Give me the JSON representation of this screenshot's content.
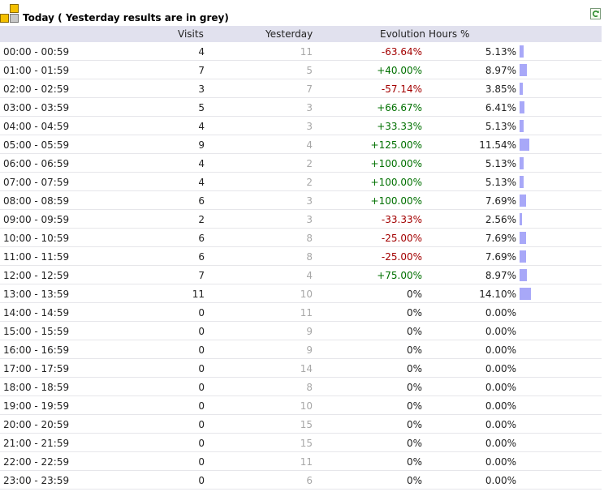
{
  "title": "Today ( Yesterday results are in grey)",
  "columns": {
    "visits": "Visits",
    "yesterday": "Yesterday",
    "evolution": "Evolution",
    "hours_pct": "Hours %"
  },
  "colors": {
    "header_bg": "#e1e1ee",
    "bar": "#a8a8f8",
    "negative": "#a30000",
    "positive": "#007000",
    "grey": "#a8a8a8"
  },
  "rows": [
    {
      "hour": "00:00 - 00:59",
      "visits": "4",
      "yesterday": "11",
      "evolution": "-63.64%",
      "pct": "5.13%",
      "share": 5.13
    },
    {
      "hour": "01:00 - 01:59",
      "visits": "7",
      "yesterday": "5",
      "evolution": "+40.00%",
      "pct": "8.97%",
      "share": 8.97
    },
    {
      "hour": "02:00 - 02:59",
      "visits": "3",
      "yesterday": "7",
      "evolution": "-57.14%",
      "pct": "3.85%",
      "share": 3.85
    },
    {
      "hour": "03:00 - 03:59",
      "visits": "5",
      "yesterday": "3",
      "evolution": "+66.67%",
      "pct": "6.41%",
      "share": 6.41
    },
    {
      "hour": "04:00 - 04:59",
      "visits": "4",
      "yesterday": "3",
      "evolution": "+33.33%",
      "pct": "5.13%",
      "share": 5.13
    },
    {
      "hour": "05:00 - 05:59",
      "visits": "9",
      "yesterday": "4",
      "evolution": "+125.00%",
      "pct": "11.54%",
      "share": 11.54
    },
    {
      "hour": "06:00 - 06:59",
      "visits": "4",
      "yesterday": "2",
      "evolution": "+100.00%",
      "pct": "5.13%",
      "share": 5.13
    },
    {
      "hour": "07:00 - 07:59",
      "visits": "4",
      "yesterday": "2",
      "evolution": "+100.00%",
      "pct": "5.13%",
      "share": 5.13
    },
    {
      "hour": "08:00 - 08:59",
      "visits": "6",
      "yesterday": "3",
      "evolution": "+100.00%",
      "pct": "7.69%",
      "share": 7.69
    },
    {
      "hour": "09:00 - 09:59",
      "visits": "2",
      "yesterday": "3",
      "evolution": "-33.33%",
      "pct": "2.56%",
      "share": 2.56
    },
    {
      "hour": "10:00 - 10:59",
      "visits": "6",
      "yesterday": "8",
      "evolution": "-25.00%",
      "pct": "7.69%",
      "share": 7.69
    },
    {
      "hour": "11:00 - 11:59",
      "visits": "6",
      "yesterday": "8",
      "evolution": "-25.00%",
      "pct": "7.69%",
      "share": 7.69
    },
    {
      "hour": "12:00 - 12:59",
      "visits": "7",
      "yesterday": "4",
      "evolution": "+75.00%",
      "pct": "8.97%",
      "share": 8.97
    },
    {
      "hour": "13:00 - 13:59",
      "visits": "11",
      "yesterday": "10",
      "evolution": "0%",
      "pct": "14.10%",
      "share": 14.1
    },
    {
      "hour": "14:00 - 14:59",
      "visits": "0",
      "yesterday": "11",
      "evolution": "0%",
      "pct": "0.00%",
      "share": 0
    },
    {
      "hour": "15:00 - 15:59",
      "visits": "0",
      "yesterday": "9",
      "evolution": "0%",
      "pct": "0.00%",
      "share": 0
    },
    {
      "hour": "16:00 - 16:59",
      "visits": "0",
      "yesterday": "9",
      "evolution": "0%",
      "pct": "0.00%",
      "share": 0
    },
    {
      "hour": "17:00 - 17:59",
      "visits": "0",
      "yesterday": "14",
      "evolution": "0%",
      "pct": "0.00%",
      "share": 0
    },
    {
      "hour": "18:00 - 18:59",
      "visits": "0",
      "yesterday": "8",
      "evolution": "0%",
      "pct": "0.00%",
      "share": 0
    },
    {
      "hour": "19:00 - 19:59",
      "visits": "0",
      "yesterday": "10",
      "evolution": "0%",
      "pct": "0.00%",
      "share": 0
    },
    {
      "hour": "20:00 - 20:59",
      "visits": "0",
      "yesterday": "15",
      "evolution": "0%",
      "pct": "0.00%",
      "share": 0
    },
    {
      "hour": "21:00 - 21:59",
      "visits": "0",
      "yesterday": "15",
      "evolution": "0%",
      "pct": "0.00%",
      "share": 0
    },
    {
      "hour": "22:00 - 22:59",
      "visits": "0",
      "yesterday": "11",
      "evolution": "0%",
      "pct": "0.00%",
      "share": 0
    },
    {
      "hour": "23:00 - 23:59",
      "visits": "0",
      "yesterday": "6",
      "evolution": "0%",
      "pct": "0.00%",
      "share": 0
    }
  ]
}
